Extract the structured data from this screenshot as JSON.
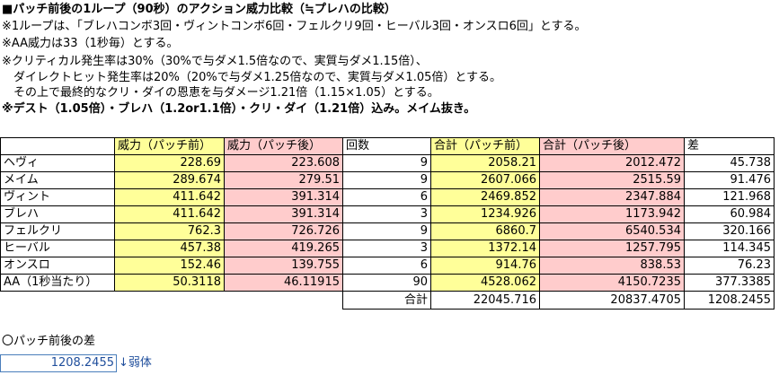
{
  "header": {
    "title": "■パッチ前後の1ループ（90秒）のアクション威力比較（≒プレハの比較）",
    "notes": [
      "※1ループは、「ブレハコンボ3回・ヴィントコンボ6回・フェルクリ9回・ヒーバル3回・オンスロ6回」とする。",
      "※AA威力は33（1秒毎）とする。",
      "※クリティカル発生率は30%（30%で与ダメ1.5倍なので、実質与ダメ1.15倍）、",
      "　ダイレクトヒット発生率は20%（20%で与ダメ1.25倍なので、実質与ダメ1.05倍）とする。",
      "　その上で最終的なクリ・ダイの恩恵を与ダメージ1.21倍（1.15×1.05）とする。"
    ],
    "bold_note": "※デスト（1.05倍）・ブレハ（1.2or1.1倍）・クリ・ダイ（1.21倍）込み。メイム抜き。"
  },
  "table": {
    "columns": [
      "威力（パッチ前）",
      "威力（パッチ後）",
      "回数",
      "合計（パッチ前）",
      "合計（パッチ後）",
      "差"
    ],
    "rows": [
      [
        "ヘヴィ",
        228.69,
        223.608,
        9,
        2058.21,
        2012.472,
        45.738
      ],
      [
        "メイム",
        289.674,
        279.51,
        9,
        2607.066,
        2515.59,
        91.476
      ],
      [
        "ヴィント",
        411.642,
        391.314,
        6,
        2469.852,
        2347.884,
        121.968
      ],
      [
        "ブレハ",
        411.642,
        391.314,
        3,
        1234.926,
        1173.942,
        60.984
      ],
      [
        "フェルクリ",
        762.3,
        726.726,
        9,
        6860.7,
        6540.534,
        320.166
      ],
      [
        "ヒーバル",
        457.38,
        419.265,
        3,
        1372.14,
        1257.795,
        114.345
      ],
      [
        "オンスロ",
        152.46,
        139.755,
        6,
        914.76,
        838.53,
        76.23
      ],
      [
        "AA（1秒当たり）",
        50.3118,
        46.11915,
        90,
        4528.062,
        4150.7235,
        377.3385
      ]
    ],
    "total": {
      "label": "合計",
      "values": [
        22045.716,
        20837.4705,
        1208.2455
      ]
    }
  },
  "footer": {
    "label": "〇パッチ前後の差",
    "value": 1208.2455,
    "note": "↓弱体"
  }
}
